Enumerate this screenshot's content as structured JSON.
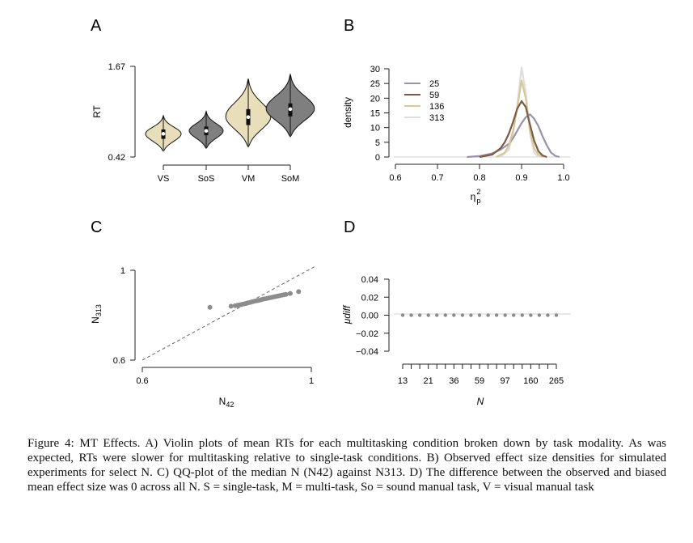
{
  "caption": "Figure 4: MT Effects. A) Violin plots of mean RTs for each multitasking condition broken down by task modality. As was expected, RTs were slower for multitasking relative to single-task conditions. B) Observed effect size densities for simulated experiments for select N. C) QQ-plot of the median N (N42) against N313. D) The difference between the observed and biased mean effect size was 0 across all N. S = single-task, M = multi-task, So = sound manual task, V = visual manual task",
  "colors": {
    "beige": "#e8dfba",
    "dark": "#7f7f7f",
    "dots": "#8c8c8c"
  },
  "chart_data": [
    {
      "panel": "A",
      "type": "violin",
      "ylabel": "RT",
      "yticks": [
        "1.67",
        "0.42"
      ],
      "ylim": [
        0.42,
        1.67
      ],
      "categories": [
        "VS",
        "SoS",
        "VM",
        "SoM"
      ],
      "fills": [
        "beige",
        "dark",
        "beige",
        "dark"
      ],
      "violins": [
        {
          "name": "VS",
          "min": 0.5,
          "max": 0.99,
          "q1": 0.67,
          "median": 0.74,
          "q3": 0.8
        },
        {
          "name": "SoS",
          "min": 0.54,
          "max": 1.05,
          "q1": 0.72,
          "median": 0.78,
          "q3": 0.84
        },
        {
          "name": "VM",
          "min": 0.56,
          "max": 1.5,
          "q1": 0.86,
          "median": 0.97,
          "q3": 1.08
        },
        {
          "name": "SoM",
          "min": 0.7,
          "max": 1.56,
          "q1": 0.98,
          "median": 1.08,
          "q3": 1.16
        }
      ]
    },
    {
      "panel": "B",
      "type": "line",
      "xlabel": "η",
      "xlabel_sup": "2",
      "xlabel_sub": "p",
      "ylabel": "density",
      "xlim": [
        0.6,
        1.0
      ],
      "ylim": [
        0,
        30
      ],
      "xticks": [
        "0.6",
        "0.7",
        "0.8",
        "0.9",
        "1.0"
      ],
      "yticks": [
        "30",
        "25",
        "20",
        "15",
        "10",
        "5",
        "0"
      ],
      "legend_position": "top-left",
      "series": [
        {
          "name": "25",
          "color": "#9a92a8",
          "x": [
            0.77,
            0.8,
            0.83,
            0.85,
            0.87,
            0.88,
            0.89,
            0.9,
            0.91,
            0.92,
            0.93,
            0.94,
            0.95,
            0.96,
            0.97,
            0.98,
            0.99
          ],
          "y": [
            0,
            0.3,
            1.2,
            2.5,
            4.5,
            6.5,
            9,
            11.5,
            13.5,
            14.5,
            13,
            10.5,
            7,
            4,
            1.5,
            0.4,
            0
          ]
        },
        {
          "name": "59",
          "color": "#7a5a48",
          "x": [
            0.8,
            0.83,
            0.85,
            0.86,
            0.87,
            0.88,
            0.89,
            0.9,
            0.91,
            0.92,
            0.93,
            0.94,
            0.95,
            0.96
          ],
          "y": [
            0,
            0.8,
            3,
            5,
            8,
            12,
            16.5,
            19,
            17,
            11,
            5.5,
            2,
            0.5,
            0
          ]
        },
        {
          "name": "136",
          "color": "#d7c896",
          "x": [
            0.84,
            0.86,
            0.87,
            0.88,
            0.89,
            0.9,
            0.91,
            0.92,
            0.93,
            0.94,
            0.95
          ],
          "y": [
            0,
            1.5,
            4,
            9,
            17,
            26,
            20,
            9,
            3,
            0.8,
            0
          ]
        },
        {
          "name": "313",
          "color": "#dedede",
          "x": [
            0.85,
            0.87,
            0.88,
            0.89,
            0.9,
            0.91,
            0.92,
            0.93,
            0.94
          ],
          "y": [
            0,
            2.5,
            8,
            18,
            30.5,
            22,
            8,
            1.5,
            0
          ]
        }
      ]
    },
    {
      "panel": "C",
      "type": "scatter",
      "xlabel": "N",
      "xlabel_sub": "42",
      "ylabel": "N",
      "ylabel_sub": "313",
      "xlim": [
        0.6,
        1.0
      ],
      "ylim": [
        0.6,
        1.0
      ],
      "xticks": [
        "0.6",
        "1"
      ],
      "yticks": [
        "1",
        "0.6"
      ],
      "reference_line": "y = x",
      "points": {
        "x": [
          0.76,
          0.81,
          0.82,
          0.825,
          0.83,
          0.835,
          0.84,
          0.845,
          0.85,
          0.855,
          0.86,
          0.865,
          0.87,
          0.875,
          0.88,
          0.885,
          0.89,
          0.895,
          0.9,
          0.905,
          0.91,
          0.915,
          0.92,
          0.925,
          0.93,
          0.935,
          0.94,
          0.95,
          0.97
        ],
        "y": [
          0.835,
          0.84,
          0.842,
          0.844,
          0.846,
          0.848,
          0.85,
          0.852,
          0.855,
          0.857,
          0.86,
          0.862,
          0.864,
          0.866,
          0.868,
          0.871,
          0.873,
          0.875,
          0.877,
          0.879,
          0.881,
          0.883,
          0.885,
          0.887,
          0.889,
          0.891,
          0.893,
          0.897,
          0.905
        ]
      }
    },
    {
      "panel": "D",
      "type": "scatter",
      "xlabel": "N",
      "ylabel": "μdiff",
      "ylim": [
        -0.04,
        0.04
      ],
      "yticks": [
        "0.04",
        "0.02",
        "0.00",
        "−0.02",
        "−0.04"
      ],
      "xtick_labels": [
        "13",
        "21",
        "36",
        "59",
        "97",
        "160",
        "265"
      ],
      "x_count": 19,
      "values": [
        0,
        0,
        0,
        0,
        0,
        0,
        0,
        0,
        0,
        0,
        0,
        0,
        0,
        0,
        0,
        0,
        0,
        0,
        0
      ]
    }
  ]
}
